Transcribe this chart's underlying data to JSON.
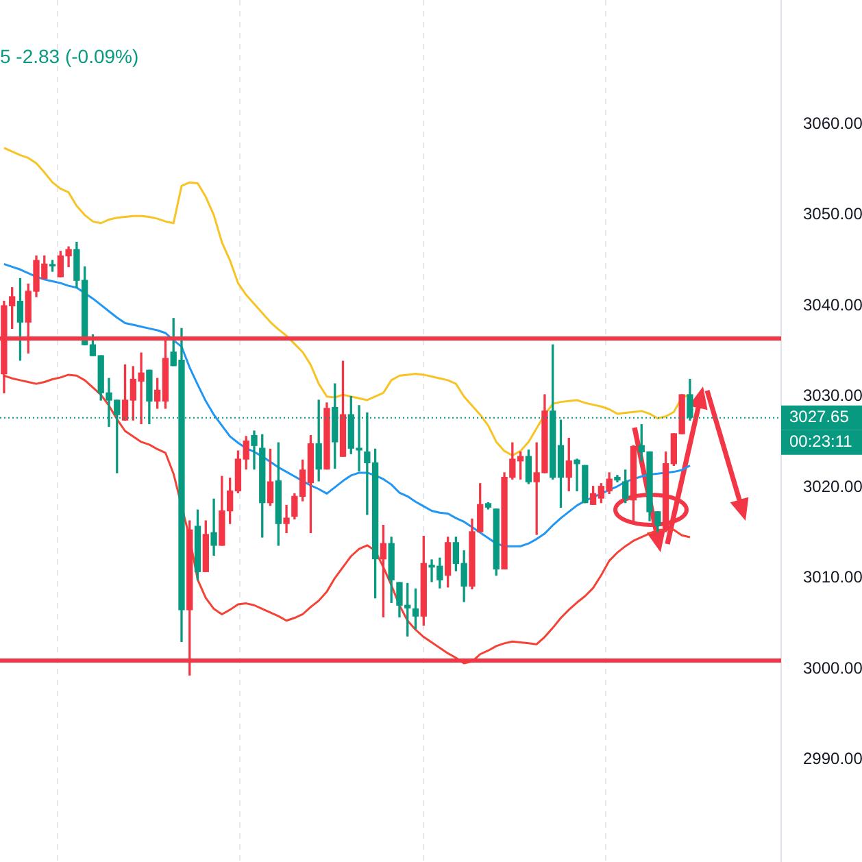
{
  "chart_data": {
    "type": "candlestick",
    "categories": [
      null,
      null,
      null,
      null,
      null,
      null,
      null,
      null,
      null,
      null,
      null,
      null,
      null,
      null,
      null,
      null,
      null,
      null,
      null,
      null,
      null,
      null,
      null,
      null,
      null,
      null,
      null,
      null,
      null,
      null,
      null,
      null,
      null,
      null,
      null,
      null,
      null,
      null,
      null,
      null,
      null,
      null,
      null,
      null,
      null,
      null,
      null,
      null,
      null,
      null,
      null,
      null,
      null,
      null,
      null,
      null,
      null,
      null,
      null,
      null,
      null,
      null,
      null,
      null,
      null,
      null,
      null,
      null,
      null,
      null,
      null,
      null,
      null,
      null,
      null,
      null,
      null,
      null,
      null,
      null,
      null,
      null,
      null,
      null,
      null,
      null
    ],
    "ohlc": [
      [
        3032.5,
        3040.5,
        3030.4,
        3040.0
      ],
      [
        3040.0,
        3042.0,
        3037.5,
        3041.0
      ],
      [
        3040.5,
        3043.0,
        3034.0,
        3038.2
      ],
      [
        3038.2,
        3042.4,
        3034.8,
        3041.6
      ],
      [
        3041.6,
        3045.5,
        3041.0,
        3045.0
      ],
      [
        3043.0,
        3045.5,
        3043.0,
        3044.6
      ],
      [
        3044.5,
        3045.0,
        3043.8,
        3044.4
      ],
      [
        3043.2,
        3046.0,
        3043.2,
        3045.5
      ],
      [
        3045.5,
        3046.5,
        3044.3,
        3046.2
      ],
      [
        3046.2,
        3047.0,
        3042.0,
        3042.8
      ],
      [
        3042.8,
        3044.3,
        3035.7,
        3035.7
      ],
      [
        3035.7,
        3036.8,
        3034.5,
        3034.5
      ],
      [
        3034.5,
        3034.5,
        3029.6,
        3030.4
      ],
      [
        3030.4,
        3032.0,
        3026.7,
        3029.6
      ],
      [
        3029.6,
        3029.6,
        3021.6,
        3028.0
      ],
      [
        3027.4,
        3033.5,
        3027.4,
        3029.6
      ],
      [
        3029.6,
        3033.3,
        3027.4,
        3031.9
      ],
      [
        3031.7,
        3034.8,
        3027.0,
        3032.6
      ],
      [
        3032.9,
        3032.9,
        3027.0,
        3029.5
      ],
      [
        3029.5,
        3032.0,
        3028.7,
        3030.7
      ],
      [
        3029.5,
        3036.3,
        3028.7,
        3034.2
      ],
      [
        3034.9,
        3038.6,
        3033.4,
        3033.4
      ],
      [
        3034.0,
        3037.5,
        3003.0,
        3006.5
      ],
      [
        3006.5,
        3016.3,
        2999.3,
        3015.3
      ],
      [
        3015.7,
        3017.5,
        3009.8,
        3010.7
      ],
      [
        3010.7,
        3016.3,
        3010.7,
        3014.8
      ],
      [
        3015.0,
        3018.7,
        3012.5,
        3013.6
      ],
      [
        3013.6,
        3021.2,
        3013.6,
        3017.4
      ],
      [
        3017.4,
        3021.0,
        3016.0,
        3019.6
      ],
      [
        3019.6,
        3024.0,
        3019.4,
        3023.1
      ],
      [
        3023.1,
        3025.6,
        3022.0,
        3025.1
      ],
      [
        3025.7,
        3026.2,
        3022.0,
        3024.6
      ],
      [
        3024.3,
        3025.8,
        3014.5,
        3018.3
      ],
      [
        3018.3,
        3024.2,
        3018.0,
        3020.6
      ],
      [
        3020.7,
        3024.9,
        3013.6,
        3016.0
      ],
      [
        3016.0,
        3018.0,
        3015.0,
        3016.6
      ],
      [
        3016.8,
        3019.3,
        3016.5,
        3019.0
      ],
      [
        3019.0,
        3023.0,
        3018.5,
        3021.9
      ],
      [
        3020.5,
        3025.7,
        3015.0,
        3024.8
      ],
      [
        3024.8,
        3029.6,
        3020.7,
        3022.0
      ],
      [
        3022.0,
        3029.3,
        3022.0,
        3028.7
      ],
      [
        3028.8,
        3031.4,
        3022.1,
        3025.0
      ],
      [
        3023.4,
        3033.9,
        3023.4,
        3028.0
      ],
      [
        3028.0,
        3030.0,
        3023.7,
        3024.3
      ],
      [
        3024.3,
        3029.0,
        3021.8,
        3024.1
      ],
      [
        3023.9,
        3028.2,
        3017.0,
        3022.7
      ],
      [
        3022.7,
        3024.2,
        3007.8,
        3012.1
      ],
      [
        3012.1,
        3015.8,
        3005.7,
        3013.8
      ],
      [
        3013.8,
        3014.5,
        3007.3,
        3009.8
      ],
      [
        3009.5,
        3009.5,
        3005.7,
        3007.0
      ],
      [
        3007.0,
        3009.4,
        3003.6,
        3006.7
      ],
      [
        3006.6,
        3008.8,
        3004.4,
        3005.8
      ],
      [
        3005.8,
        3014.6,
        3004.8,
        3011.6
      ],
      [
        3011.4,
        3012.0,
        3009.6,
        3011.2
      ],
      [
        3011.3,
        3012.2,
        3008.9,
        3009.8
      ],
      [
        3010.3,
        3014.5,
        3009.0,
        3013.9
      ],
      [
        3013.9,
        3014.5,
        3010.8,
        3011.6
      ],
      [
        3011.6,
        3013.0,
        3007.4,
        3009.1
      ],
      [
        3009.1,
        3016.5,
        3008.8,
        3015.1
      ],
      [
        3015.1,
        3020.4,
        3015.1,
        3018.1
      ],
      [
        3018.2,
        3018.3,
        3017.6,
        3017.8
      ],
      [
        3017.6,
        3017.6,
        3010.3,
        3011.0
      ],
      [
        3011.0,
        3021.6,
        3011.0,
        3021.1
      ],
      [
        3021.1,
        3024.9,
        3020.9,
        3023.1
      ],
      [
        3022.9,
        3023.9,
        3020.9,
        3023.4
      ],
      [
        3023.4,
        3024.1,
        3020.4,
        3020.6
      ],
      [
        3020.6,
        3024.9,
        3014.8,
        3021.6
      ],
      [
        3021.6,
        3030.2,
        3021.6,
        3028.4
      ],
      [
        3028.4,
        3035.7,
        3020.9,
        3021.1
      ],
      [
        3024.6,
        3027.4,
        3017.8,
        3021.1
      ],
      [
        3021.1,
        3025.4,
        3019.6,
        3022.9
      ],
      [
        3023.0,
        3023.1,
        3019.6,
        3022.6
      ],
      [
        3022.4,
        3022.4,
        3018.3,
        3018.3
      ],
      [
        3018.1,
        3020.1,
        3018.1,
        3019.3
      ],
      [
        3018.8,
        3020.4,
        3018.3,
        3020.1
      ],
      [
        3019.6,
        3021.6,
        3019.3,
        3020.9
      ],
      [
        3021.1,
        3021.3,
        3020.6,
        3020.8
      ],
      [
        3020.6,
        3021.9,
        3018.3,
        3018.8
      ],
      [
        3018.6,
        3024.6,
        3016.1,
        3024.5
      ],
      [
        3024.6,
        3026.9,
        3022.9,
        3023.9
      ],
      [
        3023.9,
        3023.9,
        3016.3,
        3017.3
      ],
      [
        3017.3,
        3017.3,
        3015.1,
        3015.8
      ],
      [
        3015.3,
        3023.9,
        3015.1,
        3022.6
      ],
      [
        3022.6,
        3025.9,
        3022.4,
        3025.9
      ],
      [
        3025.9,
        3030.2,
        3025.9,
        3030.2
      ],
      [
        3030.2,
        3031.9,
        3027.4,
        3027.7
      ]
    ],
    "colors": [
      "#f23645",
      "#f23645",
      "#089981",
      "#f23645",
      "#f23645",
      "#f23645",
      "#089981",
      "#f23645",
      "#f23645",
      "#089981",
      "#089981",
      "#089981",
      "#089981",
      "#089981",
      "#089981",
      "#f23645",
      "#f23645",
      "#f23645",
      "#089981",
      "#f23645",
      "#f23645",
      "#089981",
      "#089981",
      "#f23645",
      "#089981",
      "#f23645",
      "#089981",
      "#f23645",
      "#f23645",
      "#f23645",
      "#f23645",
      "#089981",
      "#089981",
      "#f23645",
      "#089981",
      "#f23645",
      "#f23645",
      "#f23645",
      "#f23645",
      "#089981",
      "#f23645",
      "#089981",
      "#f23645",
      "#089981",
      "#089981",
      "#089981",
      "#089981",
      "#f23645",
      "#089981",
      "#089981",
      "#089981",
      "#089981",
      "#f23645",
      "#089981",
      "#089981",
      "#f23645",
      "#089981",
      "#089981",
      "#f23645",
      "#f23645",
      "#089981",
      "#089981",
      "#f23645",
      "#f23645",
      "#f23645",
      "#089981",
      "#f23645",
      "#f23645",
      "#089981",
      "#089981",
      "#f23645",
      "#089981",
      "#089981",
      "#f23645",
      "#f23645",
      "#f23645",
      "#089981",
      "#089981",
      "#f23645",
      "#089981",
      "#089981",
      "#089981",
      "#f23645",
      "#f23645",
      "#f23645",
      "#089981"
    ],
    "series": [
      {
        "type": "line",
        "color": "#f7c325",
        "values": [
          3057.4,
          3057.0,
          3056.6,
          3056.3,
          3055.7,
          3054.7,
          3053.6,
          3052.9,
          3052.5,
          3051.0,
          3050.0,
          3049.3,
          3049.1,
          3049.5,
          3049.7,
          3049.8,
          3049.9,
          3049.9,
          3049.8,
          3049.6,
          3049.3,
          3049.1,
          3053.2,
          3053.6,
          3053.5,
          3052.0,
          3050.0,
          3047.0,
          3045.0,
          3042.5,
          3041.2,
          3040.2,
          3039.2,
          3038.2,
          3037.4,
          3036.7,
          3035.8,
          3034.9,
          3033.5,
          3031.4,
          3030.0,
          3029.9,
          3030.2,
          3030.0,
          3029.8,
          3029.6,
          3030.0,
          3030.4,
          3031.8,
          3032.3,
          3032.4,
          3032.5,
          3032.4,
          3032.2,
          3032.0,
          3031.8,
          3031.4,
          3030.0,
          3029.0,
          3028.0,
          3026.8,
          3025.0,
          3024.0,
          3023.5,
          3024.0,
          3025.0,
          3026.5,
          3028.0,
          3029.2,
          3029.4,
          3029.5,
          3029.6,
          3029.3,
          3029.1,
          3028.9,
          3028.6,
          3028.1,
          3028.2,
          3028.3,
          3028.4,
          3028.1,
          3027.6,
          3027.8,
          3028.3,
          3029.9,
          3030.2
        ]
      },
      {
        "type": "line",
        "color": "#2196f3",
        "values": [
          3044.6,
          3044.3,
          3044.0,
          3043.6,
          3043.2,
          3042.9,
          3042.7,
          3042.5,
          3042.2,
          3042.0,
          3041.4,
          3040.8,
          3040.1,
          3039.4,
          3038.7,
          3038.1,
          3037.9,
          3037.7,
          3037.5,
          3037.3,
          3037.0,
          3036.2,
          3035.5,
          3033.2,
          3031.3,
          3029.5,
          3028.0,
          3026.8,
          3025.6,
          3024.9,
          3024.3,
          3023.9,
          3023.4,
          3022.8,
          3022.2,
          3021.7,
          3021.2,
          3020.7,
          3020.2,
          3019.8,
          3019.3,
          3020.0,
          3020.7,
          3021.3,
          3021.6,
          3021.6,
          3021.3,
          3020.9,
          3020.3,
          3019.4,
          3019.0,
          3018.4,
          3017.9,
          3017.4,
          3017.2,
          3017.1,
          3016.6,
          3016.2,
          3015.6,
          3015.0,
          3014.4,
          3013.8,
          3013.5,
          3013.5,
          3013.5,
          3013.8,
          3014.3,
          3014.9,
          3015.8,
          3016.6,
          3017.3,
          3018.0,
          3018.5,
          3018.9,
          3019.3,
          3019.7,
          3020.1,
          3020.6,
          3020.9,
          3021.2,
          3021.4,
          3021.5,
          3021.6,
          3021.7,
          3021.9,
          3022.4
        ]
      },
      {
        "type": "line",
        "color": "#f44336",
        "values": [
          3032.3,
          3032.0,
          3031.8,
          3031.6,
          3031.4,
          3031.6,
          3031.9,
          3032.1,
          3032.4,
          3032.3,
          3031.8,
          3031.0,
          3030.2,
          3029.0,
          3027.5,
          3026.2,
          3025.6,
          3025.0,
          3024.7,
          3024.2,
          3023.8,
          3021.5,
          null,
          3014.4,
          3009.8,
          3007.8,
          3006.6,
          3006.0,
          3006.5,
          3007.1,
          3007.2,
          3007.0,
          3006.6,
          3006.2,
          3005.8,
          3005.3,
          3005.6,
          3006.0,
          3006.8,
          3007.5,
          3008.5,
          3010.0,
          3011.2,
          3012.4,
          3013.2,
          3013.6,
          3013.0,
          3011.2,
          3009.2,
          3007.0,
          3005.3,
          3004.3,
          3003.5,
          3002.9,
          3002.3,
          3001.7,
          3001.2,
          3000.6,
          3000.8,
          3001.6,
          3002.0,
          3002.5,
          3002.8,
          3003.0,
          3002.9,
          3002.8,
          3002.7,
          3003.5,
          3004.5,
          3005.6,
          3006.5,
          3007.3,
          3008.0,
          3008.9,
          3010.3,
          3011.9,
          3012.8,
          3013.5,
          3014.1,
          3014.5,
          3014.9,
          3015.3,
          3015.3,
          3015.3,
          3014.7,
          3014.5
        ]
      }
    ],
    "ylim": [
      2978.7,
      3073.7
    ],
    "yticks": [
      {
        "value": 2990,
        "label": "2990.00"
      },
      {
        "value": 3000,
        "label": "3000.00"
      },
      {
        "value": 3010,
        "label": "3010.00"
      },
      {
        "value": 3020,
        "label": "3020.00"
      },
      {
        "value": 3030,
        "label": "3030.00"
      },
      {
        "value": 3040,
        "label": "3040.00"
      },
      {
        "value": 3050,
        "label": "3050.00"
      },
      {
        "value": 3060,
        "label": "3060.00"
      }
    ],
    "ref_lines": [
      {
        "axis": "y",
        "value": 3036.4,
        "color": "#f23645"
      },
      {
        "axis": "y",
        "value": 3000.9,
        "color": "#f23645"
      },
      {
        "axis": "y",
        "value": 3027.65,
        "label": "3027.65",
        "color": "#089981",
        "line_style": "dotted"
      }
    ],
    "annotations": [
      "5 -2.83 (-0.09%)",
      "00:23:11"
    ]
  }
}
